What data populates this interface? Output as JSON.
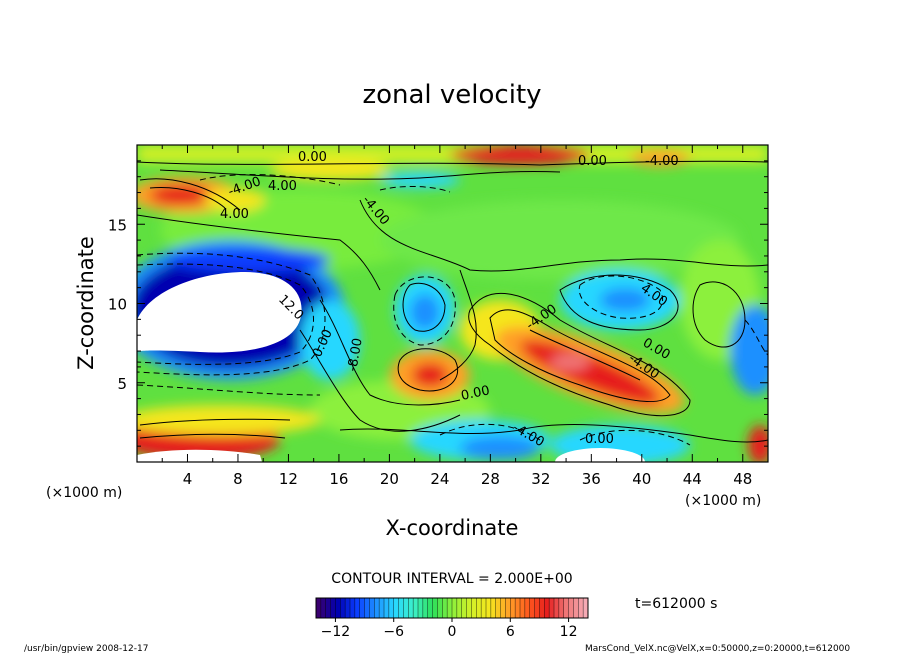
{
  "chart_data": {
    "type": "heatmap",
    "title": "zonal velocity",
    "xlabel": "X-coordinate",
    "ylabel": "Z-coordinate",
    "x_unit_left": "(×1000 m)",
    "x_unit_right": "(×1000 m)",
    "xlim": [
      0,
      50
    ],
    "ylim": [
      0,
      20
    ],
    "x_ticks": [
      "4",
      "8",
      "12",
      "16",
      "20",
      "24",
      "28",
      "32",
      "36",
      "40",
      "44",
      "48"
    ],
    "y_ticks": [
      "5",
      "10",
      "15"
    ],
    "contour_interval_label": "CONTOUR INTERVAL = 2.000E+00",
    "time_label": "t=612000 s",
    "colorbar": {
      "range": [
        -14,
        14
      ],
      "tick_labels": [
        "-12",
        "-6",
        "0",
        "6",
        "12"
      ],
      "colors": [
        "#3a0070",
        "#0000b0",
        "#0a3cff",
        "#1e90ff",
        "#28d7ff",
        "#3cf0c8",
        "#2ee05a",
        "#8cf03c",
        "#d2f028",
        "#f5e61e",
        "#ffa028",
        "#ff5a1e",
        "#e61e1e",
        "#f07878",
        "#f5aab4"
      ]
    },
    "contour_labels": [
      "0.00",
      "-4.00",
      "4.00",
      "4.00",
      "-4.00",
      "0.00",
      "-4.00",
      "12.0",
      "0.00",
      "-8.00",
      "4.00",
      "-4.00",
      "0.00",
      "-4.00",
      "0.00",
      "-4.00",
      "0.00"
    ],
    "fields": {
      "positive_maxima": [
        {
          "x": 5,
          "z": 16.8,
          "value": 12
        },
        {
          "x": 23,
          "z": 5.5,
          "value": 12
        },
        {
          "x": 35,
          "z": 6.5,
          "value": 12
        },
        {
          "x": 28,
          "z": 9.5,
          "value": 6
        },
        {
          "x": 28,
          "z": 19.2,
          "value": 12
        },
        {
          "x": 12,
          "z": 1.5,
          "value": 12
        }
      ],
      "negative_minima": [
        {
          "x": 10,
          "z": 10,
          "value": -14
        },
        {
          "x": 23,
          "z": 9.5,
          "value": -6
        },
        {
          "x": 38,
          "z": 10,
          "value": -6
        },
        {
          "x": 28,
          "z": 1.5,
          "value": -8
        },
        {
          "x": 49.5,
          "z": 7,
          "value": -8
        }
      ]
    },
    "footer_left": "/usr/bin/gpview   2008-12-17",
    "footer_right": "MarsCond_VelX.nc@VelX,x=0:50000,z=0:20000,t=612000"
  }
}
